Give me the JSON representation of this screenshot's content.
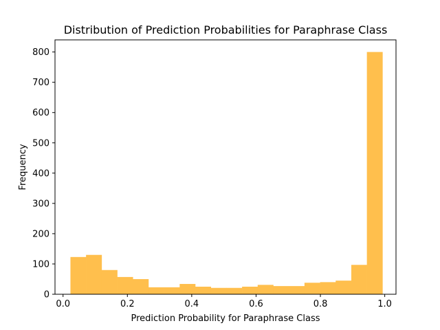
{
  "chart_data": {
    "type": "bar",
    "title": "Distribution of Prediction Probabilities for Paraphrase Class",
    "xlabel": "Prediction Probability for Paraphrase Class",
    "ylabel": "Frequency",
    "xlim": [
      -0.025,
      1.035
    ],
    "ylim": [
      0,
      840
    ],
    "xticks": [
      0.0,
      0.2,
      0.4,
      0.6,
      0.8,
      1.0
    ],
    "xtick_labels": [
      "0.0",
      "0.2",
      "0.4",
      "0.6",
      "0.8",
      "1.0"
    ],
    "yticks": [
      0,
      100,
      200,
      300,
      400,
      500,
      600,
      700,
      800
    ],
    "ytick_labels": [
      "0",
      "100",
      "200",
      "300",
      "400",
      "500",
      "600",
      "700",
      "800"
    ],
    "bin_edges": [
      0.023,
      0.0715,
      0.12,
      0.1685,
      0.217,
      0.2655,
      0.314,
      0.3625,
      0.411,
      0.4595,
      0.508,
      0.5565,
      0.605,
      0.6535,
      0.702,
      0.7505,
      0.799,
      0.8475,
      0.896,
      0.9445,
      0.993
    ],
    "values": [
      123,
      130,
      80,
      57,
      50,
      23,
      23,
      34,
      25,
      21,
      21,
      25,
      31,
      27,
      27,
      38,
      40,
      45,
      97,
      800
    ],
    "bar_color": "#ffbf4d",
    "grid": false,
    "legend": "none"
  }
}
